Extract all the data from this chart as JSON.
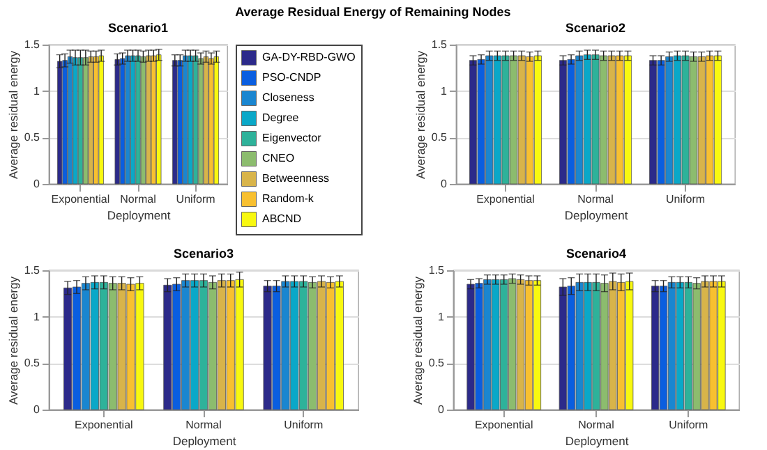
{
  "chart_data": [
    {
      "type": "bar",
      "title": "Scenario1",
      "xlabel": "Deployment",
      "ylabel": "Average residual energy",
      "annotations": [
        "Average Residual Energy of Remaining Nodes"
      ],
      "categories": [
        "Exponential",
        "Normal",
        "Uniform"
      ],
      "ylim": [
        0,
        1.5
      ],
      "yticks": [
        0,
        0.5,
        1,
        1.5
      ],
      "grid": "y",
      "legend": "right",
      "series": [
        {
          "name": "GA-DY-RBD-GWO",
          "color": "#2c2a8a",
          "values": [
            1.32,
            1.34,
            1.33
          ],
          "errors": [
            0.07,
            0.06,
            0.06
          ]
        },
        {
          "name": "PSO-CNDP",
          "color": "#0a5ee0",
          "values": [
            1.33,
            1.35,
            1.33
          ],
          "errors": [
            0.07,
            0.06,
            0.06
          ]
        },
        {
          "name": "Closeness",
          "color": "#1a86d0",
          "values": [
            1.37,
            1.38,
            1.38
          ],
          "errors": [
            0.07,
            0.06,
            0.06
          ]
        },
        {
          "name": "Degree",
          "color": "#0aa8c8",
          "values": [
            1.36,
            1.38,
            1.38
          ],
          "errors": [
            0.08,
            0.06,
            0.06
          ]
        },
        {
          "name": "Eigenvector",
          "color": "#2eb29a",
          "values": [
            1.36,
            1.38,
            1.38
          ],
          "errors": [
            0.08,
            0.06,
            0.06
          ]
        },
        {
          "name": "CNEO",
          "color": "#8cbc6e",
          "values": [
            1.36,
            1.37,
            1.35
          ],
          "errors": [
            0.08,
            0.06,
            0.06
          ]
        },
        {
          "name": "Betweenness",
          "color": "#d8b44a",
          "values": [
            1.37,
            1.38,
            1.37
          ],
          "errors": [
            0.06,
            0.06,
            0.06
          ]
        },
        {
          "name": "Random-k",
          "color": "#f8c030",
          "values": [
            1.37,
            1.38,
            1.35
          ],
          "errors": [
            0.06,
            0.06,
            0.06
          ]
        },
        {
          "name": "ABCND",
          "color": "#f8f810",
          "values": [
            1.38,
            1.39,
            1.37
          ],
          "errors": [
            0.06,
            0.06,
            0.06
          ]
        }
      ]
    },
    {
      "type": "bar",
      "title": "Scenario2",
      "xlabel": "Deployment",
      "ylabel": "Average residual energy",
      "categories": [
        "Exponential",
        "Normal",
        "Uniform"
      ],
      "ylim": [
        0,
        1.5
      ],
      "yticks": [
        0,
        0.5,
        1,
        1.5
      ],
      "grid": "y",
      "series": [
        {
          "color": "#2c2a8a",
          "values": [
            1.33,
            1.33,
            1.33
          ],
          "errors": [
            0.05,
            0.05,
            0.05
          ]
        },
        {
          "color": "#0a5ee0",
          "values": [
            1.34,
            1.34,
            1.33
          ],
          "errors": [
            0.05,
            0.05,
            0.05
          ]
        },
        {
          "color": "#1a86d0",
          "values": [
            1.38,
            1.38,
            1.37
          ],
          "errors": [
            0.05,
            0.05,
            0.05
          ]
        },
        {
          "color": "#0aa8c8",
          "values": [
            1.38,
            1.39,
            1.38
          ],
          "errors": [
            0.05,
            0.05,
            0.05
          ]
        },
        {
          "color": "#2eb29a",
          "values": [
            1.38,
            1.39,
            1.38
          ],
          "errors": [
            0.05,
            0.05,
            0.05
          ]
        },
        {
          "color": "#8cbc6e",
          "values": [
            1.38,
            1.38,
            1.37
          ],
          "errors": [
            0.05,
            0.05,
            0.05
          ]
        },
        {
          "color": "#d8b44a",
          "values": [
            1.38,
            1.38,
            1.37
          ],
          "errors": [
            0.05,
            0.05,
            0.05
          ]
        },
        {
          "color": "#f8c030",
          "values": [
            1.37,
            1.38,
            1.38
          ],
          "errors": [
            0.05,
            0.05,
            0.05
          ]
        },
        {
          "color": "#f8f810",
          "values": [
            1.38,
            1.38,
            1.38
          ],
          "errors": [
            0.05,
            0.05,
            0.05
          ]
        }
      ]
    },
    {
      "type": "bar",
      "title": "Scenario3",
      "xlabel": "Deployment",
      "ylabel": "Average residual energy",
      "categories": [
        "Exponential",
        "Normal",
        "Uniform"
      ],
      "ylim": [
        0,
        1.5
      ],
      "yticks": [
        0,
        0.5,
        1,
        1.5
      ],
      "grid": "y",
      "series": [
        {
          "color": "#2c2a8a",
          "values": [
            1.31,
            1.34,
            1.33
          ],
          "errors": [
            0.07,
            0.07,
            0.06
          ]
        },
        {
          "color": "#0a5ee0",
          "values": [
            1.32,
            1.35,
            1.33
          ],
          "errors": [
            0.07,
            0.07,
            0.06
          ]
        },
        {
          "color": "#1a86d0",
          "values": [
            1.36,
            1.39,
            1.38
          ],
          "errors": [
            0.07,
            0.07,
            0.06
          ]
        },
        {
          "color": "#0aa8c8",
          "values": [
            1.37,
            1.39,
            1.38
          ],
          "errors": [
            0.07,
            0.07,
            0.06
          ]
        },
        {
          "color": "#2eb29a",
          "values": [
            1.37,
            1.39,
            1.38
          ],
          "errors": [
            0.07,
            0.07,
            0.06
          ]
        },
        {
          "color": "#8cbc6e",
          "values": [
            1.36,
            1.37,
            1.37
          ],
          "errors": [
            0.07,
            0.07,
            0.06
          ]
        },
        {
          "color": "#d8b44a",
          "values": [
            1.36,
            1.39,
            1.38
          ],
          "errors": [
            0.07,
            0.07,
            0.06
          ]
        },
        {
          "color": "#f8c030",
          "values": [
            1.35,
            1.39,
            1.37
          ],
          "errors": [
            0.07,
            0.07,
            0.06
          ]
        },
        {
          "color": "#f8f810",
          "values": [
            1.36,
            1.4,
            1.38
          ],
          "errors": [
            0.07,
            0.08,
            0.06
          ]
        }
      ]
    },
    {
      "type": "bar",
      "title": "Scenario4",
      "xlabel": "Deployment",
      "ylabel": "Average residual energy",
      "categories": [
        "Exponential",
        "Normal",
        "Uniform"
      ],
      "ylim": [
        0,
        1.5
      ],
      "yticks": [
        0,
        0.5,
        1,
        1.5
      ],
      "grid": "y",
      "series": [
        {
          "color": "#2c2a8a",
          "values": [
            1.35,
            1.32,
            1.33
          ],
          "errors": [
            0.05,
            0.09,
            0.06
          ]
        },
        {
          "color": "#0a5ee0",
          "values": [
            1.36,
            1.33,
            1.33
          ],
          "errors": [
            0.05,
            0.09,
            0.06
          ]
        },
        {
          "color": "#1a86d0",
          "values": [
            1.4,
            1.37,
            1.37
          ],
          "errors": [
            0.05,
            0.09,
            0.06
          ]
        },
        {
          "color": "#0aa8c8",
          "values": [
            1.4,
            1.37,
            1.37
          ],
          "errors": [
            0.05,
            0.09,
            0.06
          ]
        },
        {
          "color": "#2eb29a",
          "values": [
            1.4,
            1.37,
            1.37
          ],
          "errors": [
            0.05,
            0.09,
            0.06
          ]
        },
        {
          "color": "#8cbc6e",
          "values": [
            1.41,
            1.36,
            1.36
          ],
          "errors": [
            0.05,
            0.09,
            0.06
          ]
        },
        {
          "color": "#d8b44a",
          "values": [
            1.4,
            1.38,
            1.38
          ],
          "errors": [
            0.05,
            0.09,
            0.06
          ]
        },
        {
          "color": "#f8c030",
          "values": [
            1.39,
            1.37,
            1.38
          ],
          "errors": [
            0.05,
            0.09,
            0.06
          ]
        },
        {
          "color": "#f8f810",
          "values": [
            1.39,
            1.38,
            1.38
          ],
          "errors": [
            0.05,
            0.09,
            0.06
          ]
        }
      ]
    }
  ]
}
